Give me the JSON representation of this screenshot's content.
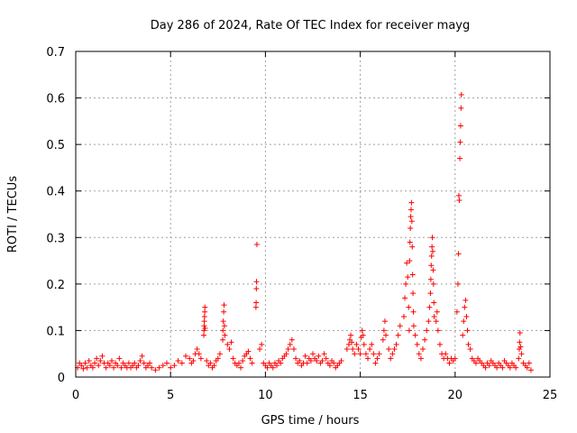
{
  "chart_data": {
    "type": "scatter",
    "title": "Day 286 of 2024, Rate Of TEC Index for receiver mayg",
    "xlabel": "GPS time / hours",
    "ylabel": "ROTI / TECUs",
    "xlim": [
      0,
      25
    ],
    "ylim": [
      0,
      0.7
    ],
    "x_ticks": [
      0,
      5,
      10,
      15,
      20,
      25
    ],
    "x_tick_labels": [
      "0",
      "5",
      "10",
      "15",
      "20",
      "25"
    ],
    "y_ticks": [
      0,
      0.1,
      0.2,
      0.3,
      0.4,
      0.5,
      0.6,
      0.7
    ],
    "y_tick_labels": [
      "0",
      "0.1",
      "0.2",
      "0.3",
      "0.4",
      "0.5",
      "0.6",
      "0.7"
    ],
    "grid": true,
    "marker": "+",
    "color": "#ff0000",
    "series": [
      {
        "name": "ROTI",
        "points": [
          [
            0.1,
            0.02
          ],
          [
            0.2,
            0.03
          ],
          [
            0.3,
            0.025
          ],
          [
            0.4,
            0.018
          ],
          [
            0.5,
            0.03
          ],
          [
            0.6,
            0.02
          ],
          [
            0.7,
            0.035
          ],
          [
            0.8,
            0.025
          ],
          [
            0.9,
            0.02
          ],
          [
            1.0,
            0.03
          ],
          [
            1.1,
            0.04
          ],
          [
            1.2,
            0.025
          ],
          [
            1.3,
            0.035
          ],
          [
            1.4,
            0.045
          ],
          [
            1.5,
            0.03
          ],
          [
            1.6,
            0.02
          ],
          [
            1.7,
            0.03
          ],
          [
            1.8,
            0.025
          ],
          [
            1.9,
            0.035
          ],
          [
            2.0,
            0.02
          ],
          [
            2.1,
            0.03
          ],
          [
            2.2,
            0.025
          ],
          [
            2.3,
            0.04
          ],
          [
            2.4,
            0.02
          ],
          [
            2.5,
            0.03
          ],
          [
            2.6,
            0.025
          ],
          [
            2.7,
            0.02
          ],
          [
            2.8,
            0.03
          ],
          [
            2.9,
            0.02
          ],
          [
            3.0,
            0.025
          ],
          [
            3.1,
            0.03
          ],
          [
            3.2,
            0.02
          ],
          [
            3.3,
            0.025
          ],
          [
            3.4,
            0.035
          ],
          [
            3.5,
            0.045
          ],
          [
            3.6,
            0.03
          ],
          [
            3.7,
            0.02
          ],
          [
            3.8,
            0.025
          ],
          [
            3.9,
            0.03
          ],
          [
            4.0,
            0.02
          ],
          [
            4.2,
            0.015
          ],
          [
            4.4,
            0.02
          ],
          [
            4.6,
            0.025
          ],
          [
            4.8,
            0.03
          ],
          [
            5.0,
            0.02
          ],
          [
            5.2,
            0.025
          ],
          [
            5.4,
            0.035
          ],
          [
            5.6,
            0.03
          ],
          [
            5.8,
            0.045
          ],
          [
            6.0,
            0.04
          ],
          [
            6.1,
            0.03
          ],
          [
            6.2,
            0.035
          ],
          [
            6.3,
            0.05
          ],
          [
            6.4,
            0.06
          ],
          [
            6.5,
            0.05
          ],
          [
            6.6,
            0.04
          ],
          [
            6.75,
            0.09
          ],
          [
            6.76,
            0.1
          ],
          [
            6.77,
            0.11
          ],
          [
            6.78,
            0.12
          ],
          [
            6.79,
            0.13
          ],
          [
            6.8,
            0.14
          ],
          [
            6.81,
            0.15
          ],
          [
            6.82,
            0.105
          ],
          [
            6.9,
            0.035
          ],
          [
            7.0,
            0.025
          ],
          [
            7.1,
            0.03
          ],
          [
            7.2,
            0.02
          ],
          [
            7.3,
            0.025
          ],
          [
            7.4,
            0.035
          ],
          [
            7.5,
            0.04
          ],
          [
            7.6,
            0.05
          ],
          [
            7.75,
            0.08
          ],
          [
            7.76,
            0.1
          ],
          [
            7.78,
            0.12
          ],
          [
            7.8,
            0.14
          ],
          [
            7.82,
            0.155
          ],
          [
            7.84,
            0.11
          ],
          [
            7.86,
            0.09
          ],
          [
            8.0,
            0.07
          ],
          [
            8.1,
            0.06
          ],
          [
            8.2,
            0.075
          ],
          [
            8.3,
            0.04
          ],
          [
            8.4,
            0.03
          ],
          [
            8.5,
            0.025
          ],
          [
            8.6,
            0.03
          ],
          [
            8.7,
            0.02
          ],
          [
            8.8,
            0.035
          ],
          [
            8.9,
            0.045
          ],
          [
            9.0,
            0.05
          ],
          [
            9.1,
            0.055
          ],
          [
            9.2,
            0.04
          ],
          [
            9.3,
            0.03
          ],
          [
            9.5,
            0.15
          ],
          [
            9.51,
            0.16
          ],
          [
            9.52,
            0.19
          ],
          [
            9.53,
            0.205
          ],
          [
            9.55,
            0.285
          ],
          [
            9.7,
            0.06
          ],
          [
            9.8,
            0.07
          ],
          [
            9.9,
            0.03
          ],
          [
            10.0,
            0.025
          ],
          [
            10.1,
            0.02
          ],
          [
            10.2,
            0.03
          ],
          [
            10.3,
            0.025
          ],
          [
            10.4,
            0.02
          ],
          [
            10.5,
            0.03
          ],
          [
            10.6,
            0.025
          ],
          [
            10.7,
            0.035
          ],
          [
            10.8,
            0.03
          ],
          [
            10.9,
            0.04
          ],
          [
            11.0,
            0.045
          ],
          [
            11.1,
            0.05
          ],
          [
            11.2,
            0.06
          ],
          [
            11.3,
            0.07
          ],
          [
            11.4,
            0.08
          ],
          [
            11.5,
            0.06
          ],
          [
            11.6,
            0.04
          ],
          [
            11.7,
            0.03
          ],
          [
            11.8,
            0.035
          ],
          [
            11.9,
            0.025
          ],
          [
            12.0,
            0.03
          ],
          [
            12.1,
            0.045
          ],
          [
            12.2,
            0.03
          ],
          [
            12.3,
            0.04
          ],
          [
            12.4,
            0.035
          ],
          [
            12.5,
            0.05
          ],
          [
            12.6,
            0.04
          ],
          [
            12.7,
            0.035
          ],
          [
            12.8,
            0.045
          ],
          [
            12.9,
            0.03
          ],
          [
            13.0,
            0.035
          ],
          [
            13.1,
            0.05
          ],
          [
            13.2,
            0.04
          ],
          [
            13.3,
            0.03
          ],
          [
            13.4,
            0.025
          ],
          [
            13.5,
            0.035
          ],
          [
            13.6,
            0.03
          ],
          [
            13.7,
            0.02
          ],
          [
            13.8,
            0.025
          ],
          [
            13.9,
            0.03
          ],
          [
            14.0,
            0.035
          ],
          [
            14.3,
            0.06
          ],
          [
            14.4,
            0.07
          ],
          [
            14.45,
            0.08
          ],
          [
            14.5,
            0.09
          ],
          [
            14.55,
            0.075
          ],
          [
            14.6,
            0.06
          ],
          [
            14.7,
            0.05
          ],
          [
            14.8,
            0.07
          ],
          [
            14.9,
            0.06
          ],
          [
            15.0,
            0.05
          ],
          [
            15.05,
            0.085
          ],
          [
            15.1,
            0.1
          ],
          [
            15.15,
            0.09
          ],
          [
            15.2,
            0.07
          ],
          [
            15.3,
            0.05
          ],
          [
            15.4,
            0.04
          ],
          [
            15.5,
            0.06
          ],
          [
            15.6,
            0.07
          ],
          [
            15.7,
            0.05
          ],
          [
            15.8,
            0.03
          ],
          [
            15.9,
            0.04
          ],
          [
            16.0,
            0.05
          ],
          [
            16.2,
            0.08
          ],
          [
            16.25,
            0.1
          ],
          [
            16.3,
            0.12
          ],
          [
            16.35,
            0.09
          ],
          [
            16.5,
            0.06
          ],
          [
            16.6,
            0.04
          ],
          [
            16.7,
            0.05
          ],
          [
            16.8,
            0.06
          ],
          [
            16.9,
            0.07
          ],
          [
            17.0,
            0.09
          ],
          [
            17.1,
            0.11
          ],
          [
            17.3,
            0.13
          ],
          [
            17.35,
            0.17
          ],
          [
            17.4,
            0.2
          ],
          [
            17.45,
            0.245
          ],
          [
            17.5,
            0.215
          ],
          [
            17.55,
            0.15
          ],
          [
            17.58,
            0.1
          ],
          [
            17.6,
            0.25
          ],
          [
            17.62,
            0.29
          ],
          [
            17.64,
            0.32
          ],
          [
            17.66,
            0.345
          ],
          [
            17.68,
            0.36
          ],
          [
            17.7,
            0.375
          ],
          [
            17.72,
            0.335
          ],
          [
            17.74,
            0.28
          ],
          [
            17.76,
            0.22
          ],
          [
            17.78,
            0.18
          ],
          [
            17.8,
            0.14
          ],
          [
            17.82,
            0.11
          ],
          [
            17.9,
            0.09
          ],
          [
            18.0,
            0.07
          ],
          [
            18.1,
            0.05
          ],
          [
            18.2,
            0.04
          ],
          [
            18.3,
            0.06
          ],
          [
            18.4,
            0.08
          ],
          [
            18.5,
            0.1
          ],
          [
            18.6,
            0.12
          ],
          [
            18.65,
            0.15
          ],
          [
            18.7,
            0.18
          ],
          [
            18.72,
            0.21
          ],
          [
            18.74,
            0.24
          ],
          [
            18.76,
            0.26
          ],
          [
            18.78,
            0.28
          ],
          [
            18.8,
            0.3
          ],
          [
            18.82,
            0.27
          ],
          [
            18.84,
            0.23
          ],
          [
            18.86,
            0.2
          ],
          [
            18.88,
            0.16
          ],
          [
            18.9,
            0.13
          ],
          [
            19.0,
            0.12
          ],
          [
            19.05,
            0.14
          ],
          [
            19.1,
            0.1
          ],
          [
            19.2,
            0.07
          ],
          [
            19.3,
            0.05
          ],
          [
            19.4,
            0.04
          ],
          [
            19.5,
            0.05
          ],
          [
            19.6,
            0.04
          ],
          [
            19.7,
            0.03
          ],
          [
            19.8,
            0.04
          ],
          [
            19.9,
            0.035
          ],
          [
            20.0,
            0.04
          ],
          [
            20.1,
            0.14
          ],
          [
            20.15,
            0.2
          ],
          [
            20.18,
            0.265
          ],
          [
            20.2,
            0.39
          ],
          [
            20.22,
            0.38
          ],
          [
            20.25,
            0.47
          ],
          [
            20.27,
            0.505
          ],
          [
            20.29,
            0.54
          ],
          [
            20.31,
            0.578
          ],
          [
            20.33,
            0.607
          ],
          [
            20.4,
            0.09
          ],
          [
            20.45,
            0.12
          ],
          [
            20.5,
            0.15
          ],
          [
            20.55,
            0.165
          ],
          [
            20.6,
            0.13
          ],
          [
            20.65,
            0.1
          ],
          [
            20.7,
            0.07
          ],
          [
            20.8,
            0.06
          ],
          [
            20.9,
            0.04
          ],
          [
            21.0,
            0.035
          ],
          [
            21.1,
            0.03
          ],
          [
            21.2,
            0.04
          ],
          [
            21.3,
            0.035
          ],
          [
            21.4,
            0.03
          ],
          [
            21.5,
            0.025
          ],
          [
            21.6,
            0.02
          ],
          [
            21.7,
            0.03
          ],
          [
            21.8,
            0.025
          ],
          [
            21.9,
            0.035
          ],
          [
            22.0,
            0.03
          ],
          [
            22.1,
            0.025
          ],
          [
            22.2,
            0.02
          ],
          [
            22.3,
            0.03
          ],
          [
            22.4,
            0.025
          ],
          [
            22.5,
            0.02
          ],
          [
            22.6,
            0.035
          ],
          [
            22.7,
            0.03
          ],
          [
            22.8,
            0.025
          ],
          [
            22.9,
            0.02
          ],
          [
            23.0,
            0.03
          ],
          [
            23.1,
            0.025
          ],
          [
            23.2,
            0.02
          ],
          [
            23.35,
            0.04
          ],
          [
            23.38,
            0.06
          ],
          [
            23.4,
            0.075
          ],
          [
            23.42,
            0.095
          ],
          [
            23.45,
            0.065
          ],
          [
            23.5,
            0.05
          ],
          [
            23.6,
            0.03
          ],
          [
            23.7,
            0.025
          ],
          [
            23.8,
            0.02
          ],
          [
            23.9,
            0.03
          ],
          [
            24.0,
            0.015
          ]
        ]
      }
    ]
  }
}
